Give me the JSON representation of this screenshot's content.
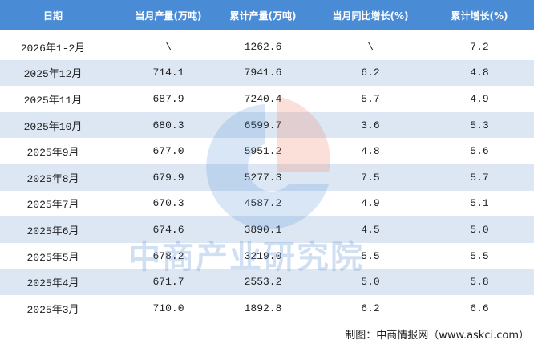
{
  "table": {
    "header": [
      "日期",
      "当月产量(万吨)",
      "累计产量(万吨)",
      "当月同比增长(%)",
      "累计增长(%)"
    ],
    "rows": [
      [
        "2026年1-2月",
        "\\",
        "1262.6",
        "\\",
        "7.2"
      ],
      [
        "2025年12月",
        "714.1",
        "7941.6",
        "6.2",
        "4.8"
      ],
      [
        "2025年11月",
        "687.9",
        "7240.4",
        "5.7",
        "4.9"
      ],
      [
        "2025年10月",
        "680.3",
        "6599.7",
        "3.6",
        "5.3"
      ],
      [
        "2025年9月",
        "677.0",
        "5951.2",
        "4.8",
        "5.6"
      ],
      [
        "2025年8月",
        "679.9",
        "5277.3",
        "7.5",
        "5.7"
      ],
      [
        "2025年7月",
        "670.3",
        "4587.2",
        "4.9",
        "5.1"
      ],
      [
        "2025年6月",
        "674.6",
        "3890.1",
        "4.5",
        "5.0"
      ],
      [
        "2025年5月",
        "678.2",
        "3219.0",
        "5.5",
        "5.5"
      ],
      [
        "2025年4月",
        "671.7",
        "2553.2",
        "5.0",
        "5.8"
      ],
      [
        "2025年3月",
        "710.0",
        "1892.8",
        "6.2",
        "6.6"
      ]
    ]
  },
  "watermark": "中商产业研究院",
  "footer": "制图：中商情报网（www.askci.com）"
}
